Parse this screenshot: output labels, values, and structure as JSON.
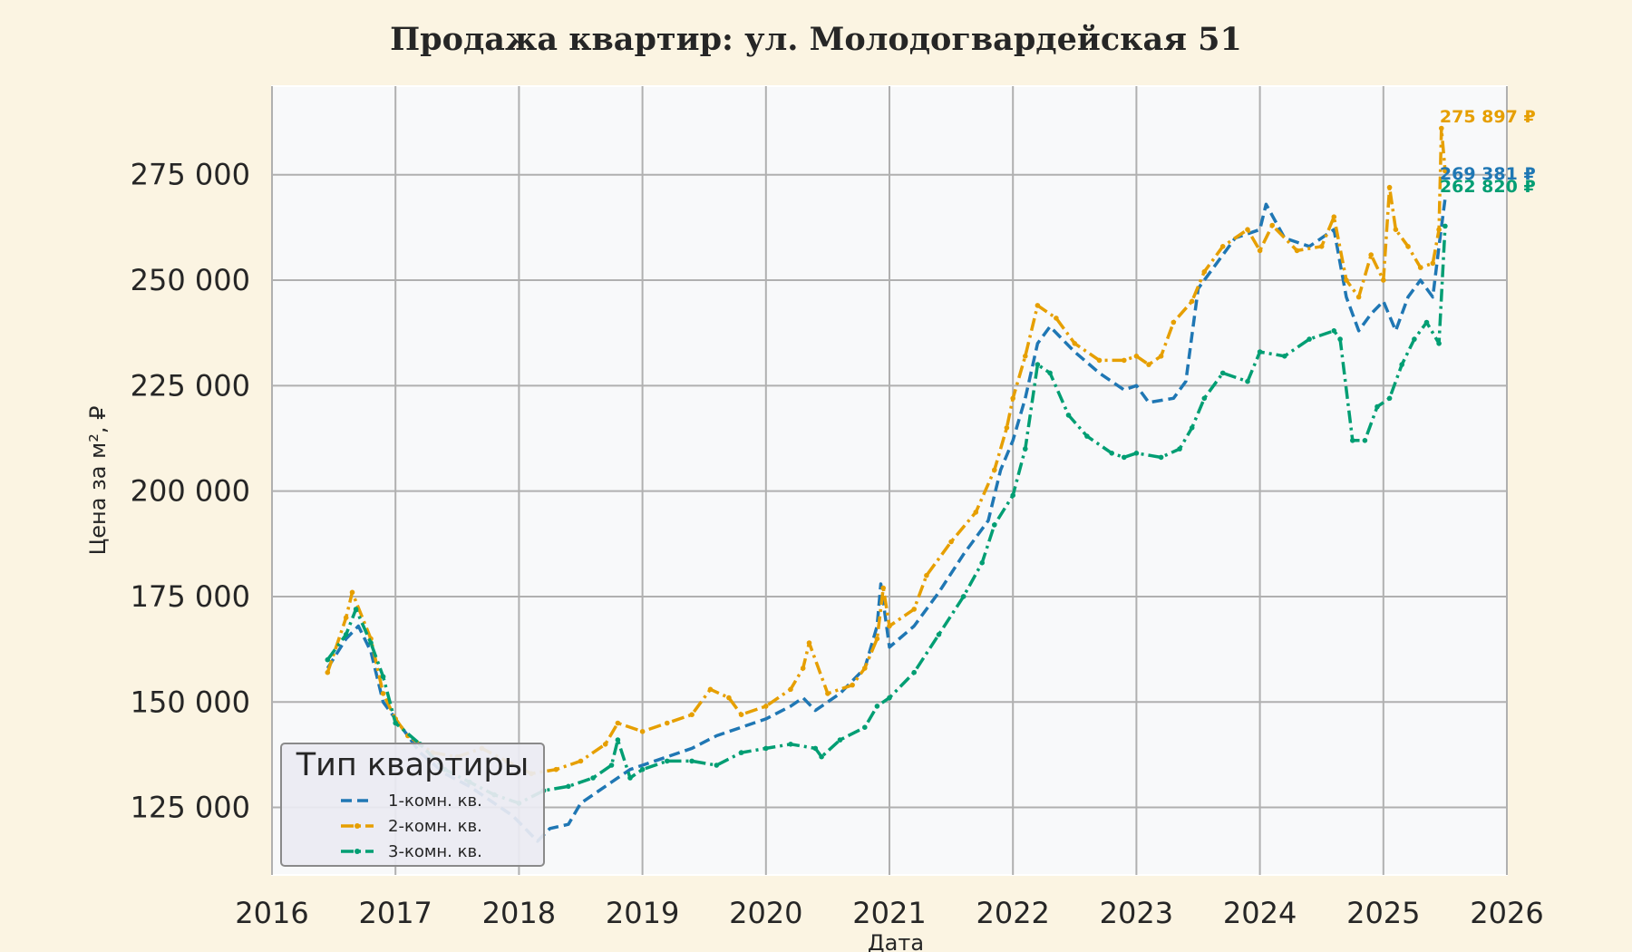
{
  "chart_data": {
    "type": "line",
    "title": "Продажа квартир: ул. Молодогвардейская 51",
    "xlabel": "Дата",
    "ylabel": "Цена за м², ₽",
    "xlim": [
      2016,
      2026
    ],
    "ylim": [
      109000,
      296000
    ],
    "x_ticks": [
      "2016",
      "2017",
      "2018",
      "2019",
      "2020",
      "2021",
      "2022",
      "2023",
      "2024",
      "2025",
      "2026"
    ],
    "x_tick_values": [
      2016,
      2017,
      2018,
      2019,
      2020,
      2021,
      2022,
      2023,
      2024,
      2025,
      2026
    ],
    "y_ticks": [
      "125 000",
      "150 000",
      "175 000",
      "200 000",
      "225 000",
      "250 000",
      "275 000"
    ],
    "y_tick_values": [
      125000,
      150000,
      175000,
      200000,
      225000,
      250000,
      275000
    ],
    "grid": true,
    "legend": {
      "title": "Тип квартиры",
      "position": "lower-left"
    },
    "series": [
      {
        "name": "1-комн. кв.",
        "color": "#1f77b4",
        "dash": "dashed",
        "end_label": "269 381 ₽",
        "points": [
          [
            2016.45,
            158000
          ],
          [
            2016.6,
            165000
          ],
          [
            2016.7,
            168000
          ],
          [
            2016.8,
            162000
          ],
          [
            2016.9,
            150000
          ],
          [
            2017.0,
            146000
          ],
          [
            2017.2,
            138000
          ],
          [
            2017.4,
            133000
          ],
          [
            2017.6,
            130000
          ],
          [
            2017.8,
            126000
          ],
          [
            2017.95,
            123000
          ],
          [
            2018.05,
            120000
          ],
          [
            2018.15,
            117000
          ],
          [
            2018.25,
            120000
          ],
          [
            2018.4,
            121000
          ],
          [
            2018.5,
            126000
          ],
          [
            2018.7,
            130000
          ],
          [
            2018.9,
            134000
          ],
          [
            2019.0,
            135000
          ],
          [
            2019.2,
            137000
          ],
          [
            2019.4,
            139000
          ],
          [
            2019.6,
            142000
          ],
          [
            2019.8,
            144000
          ],
          [
            2020.0,
            146000
          ],
          [
            2020.2,
            149000
          ],
          [
            2020.3,
            151000
          ],
          [
            2020.4,
            148000
          ],
          [
            2020.6,
            152000
          ],
          [
            2020.8,
            158000
          ],
          [
            2020.9,
            168000
          ],
          [
            2020.93,
            178000
          ],
          [
            2021.0,
            163000
          ],
          [
            2021.2,
            168000
          ],
          [
            2021.4,
            176000
          ],
          [
            2021.6,
            185000
          ],
          [
            2021.8,
            193000
          ],
          [
            2021.9,
            205000
          ],
          [
            2022.0,
            212000
          ],
          [
            2022.1,
            222000
          ],
          [
            2022.2,
            235000
          ],
          [
            2022.3,
            239000
          ],
          [
            2022.5,
            233000
          ],
          [
            2022.7,
            228000
          ],
          [
            2022.9,
            224000
          ],
          [
            2023.0,
            225000
          ],
          [
            2023.1,
            221000
          ],
          [
            2023.3,
            222000
          ],
          [
            2023.4,
            226000
          ],
          [
            2023.5,
            248000
          ],
          [
            2023.6,
            252000
          ],
          [
            2023.8,
            260000
          ],
          [
            2024.0,
            262000
          ],
          [
            2024.05,
            268000
          ],
          [
            2024.2,
            260000
          ],
          [
            2024.4,
            258000
          ],
          [
            2024.6,
            262000
          ],
          [
            2024.7,
            246000
          ],
          [
            2024.8,
            238000
          ],
          [
            2024.9,
            242000
          ],
          [
            2025.0,
            245000
          ],
          [
            2025.1,
            238000
          ],
          [
            2025.2,
            246000
          ],
          [
            2025.3,
            250000
          ],
          [
            2025.4,
            246000
          ],
          [
            2025.45,
            258000
          ],
          [
            2025.5,
            269381
          ]
        ]
      },
      {
        "name": "2-комн. кв.",
        "color": "#e69f00",
        "dash": "dashdot",
        "end_label": "275 897 ₽",
        "points": [
          [
            2016.45,
            157000
          ],
          [
            2016.6,
            170000
          ],
          [
            2016.65,
            176000
          ],
          [
            2016.8,
            165000
          ],
          [
            2016.9,
            152000
          ],
          [
            2017.0,
            146000
          ],
          [
            2017.1,
            142000
          ],
          [
            2017.3,
            138000
          ],
          [
            2017.5,
            137000
          ],
          [
            2017.7,
            139000
          ],
          [
            2017.9,
            136000
          ],
          [
            2018.1,
            133000
          ],
          [
            2018.3,
            134000
          ],
          [
            2018.5,
            136000
          ],
          [
            2018.7,
            140000
          ],
          [
            2018.8,
            145000
          ],
          [
            2019.0,
            143000
          ],
          [
            2019.2,
            145000
          ],
          [
            2019.4,
            147000
          ],
          [
            2019.55,
            153000
          ],
          [
            2019.7,
            151000
          ],
          [
            2019.8,
            147000
          ],
          [
            2020.0,
            149000
          ],
          [
            2020.2,
            153000
          ],
          [
            2020.3,
            158000
          ],
          [
            2020.35,
            164000
          ],
          [
            2020.5,
            152000
          ],
          [
            2020.7,
            154000
          ],
          [
            2020.8,
            158000
          ],
          [
            2020.9,
            165000
          ],
          [
            2020.95,
            177000
          ],
          [
            2021.0,
            168000
          ],
          [
            2021.2,
            172000
          ],
          [
            2021.3,
            180000
          ],
          [
            2021.5,
            188000
          ],
          [
            2021.7,
            195000
          ],
          [
            2021.85,
            205000
          ],
          [
            2021.95,
            215000
          ],
          [
            2022.0,
            222000
          ],
          [
            2022.1,
            232000
          ],
          [
            2022.2,
            244000
          ],
          [
            2022.35,
            241000
          ],
          [
            2022.5,
            235000
          ],
          [
            2022.7,
            231000
          ],
          [
            2022.9,
            231000
          ],
          [
            2023.0,
            232000
          ],
          [
            2023.1,
            230000
          ],
          [
            2023.2,
            232000
          ],
          [
            2023.3,
            240000
          ],
          [
            2023.45,
            245000
          ],
          [
            2023.55,
            252000
          ],
          [
            2023.7,
            258000
          ],
          [
            2023.9,
            262000
          ],
          [
            2024.0,
            257000
          ],
          [
            2024.1,
            263000
          ],
          [
            2024.3,
            257000
          ],
          [
            2024.5,
            258000
          ],
          [
            2024.6,
            265000
          ],
          [
            2024.7,
            250000
          ],
          [
            2024.8,
            246000
          ],
          [
            2024.9,
            256000
          ],
          [
            2025.0,
            250000
          ],
          [
            2025.05,
            272000
          ],
          [
            2025.1,
            262000
          ],
          [
            2025.2,
            258000
          ],
          [
            2025.3,
            253000
          ],
          [
            2025.4,
            254000
          ],
          [
            2025.45,
            262000
          ],
          [
            2025.47,
            286000
          ],
          [
            2025.5,
            275897
          ]
        ]
      },
      {
        "name": "3-комн. кв.",
        "color": "#009e73",
        "dash": "dashdot",
        "end_label": "262 820 ₽",
        "points": [
          [
            2016.45,
            160000
          ],
          [
            2016.6,
            166000
          ],
          [
            2016.68,
            172000
          ],
          [
            2016.8,
            164000
          ],
          [
            2016.9,
            156000
          ],
          [
            2017.0,
            145000
          ],
          [
            2017.2,
            140000
          ],
          [
            2017.4,
            134000
          ],
          [
            2017.6,
            131000
          ],
          [
            2017.8,
            128000
          ],
          [
            2018.0,
            126000
          ],
          [
            2018.2,
            129000
          ],
          [
            2018.4,
            130000
          ],
          [
            2018.6,
            132000
          ],
          [
            2018.75,
            135000
          ],
          [
            2018.8,
            141000
          ],
          [
            2018.9,
            132000
          ],
          [
            2019.0,
            134000
          ],
          [
            2019.2,
            136000
          ],
          [
            2019.4,
            136000
          ],
          [
            2019.6,
            135000
          ],
          [
            2019.8,
            138000
          ],
          [
            2020.0,
            139000
          ],
          [
            2020.2,
            140000
          ],
          [
            2020.4,
            139000
          ],
          [
            2020.45,
            137000
          ],
          [
            2020.6,
            141000
          ],
          [
            2020.8,
            144000
          ],
          [
            2020.9,
            149000
          ],
          [
            2021.0,
            151000
          ],
          [
            2021.2,
            157000
          ],
          [
            2021.4,
            166000
          ],
          [
            2021.6,
            175000
          ],
          [
            2021.75,
            183000
          ],
          [
            2021.85,
            192000
          ],
          [
            2022.0,
            199000
          ],
          [
            2022.1,
            210000
          ],
          [
            2022.2,
            230000
          ],
          [
            2022.3,
            228000
          ],
          [
            2022.45,
            218000
          ],
          [
            2022.6,
            213000
          ],
          [
            2022.8,
            209000
          ],
          [
            2022.9,
            208000
          ],
          [
            2023.0,
            209000
          ],
          [
            2023.2,
            208000
          ],
          [
            2023.35,
            210000
          ],
          [
            2023.45,
            215000
          ],
          [
            2023.55,
            222000
          ],
          [
            2023.7,
            228000
          ],
          [
            2023.9,
            226000
          ],
          [
            2024.0,
            233000
          ],
          [
            2024.2,
            232000
          ],
          [
            2024.4,
            236000
          ],
          [
            2024.6,
            238000
          ],
          [
            2024.65,
            236000
          ],
          [
            2024.75,
            212000
          ],
          [
            2024.85,
            212000
          ],
          [
            2024.95,
            220000
          ],
          [
            2025.05,
            222000
          ],
          [
            2025.15,
            230000
          ],
          [
            2025.25,
            236000
          ],
          [
            2025.35,
            240000
          ],
          [
            2025.45,
            235000
          ],
          [
            2025.5,
            262820
          ]
        ]
      }
    ]
  }
}
